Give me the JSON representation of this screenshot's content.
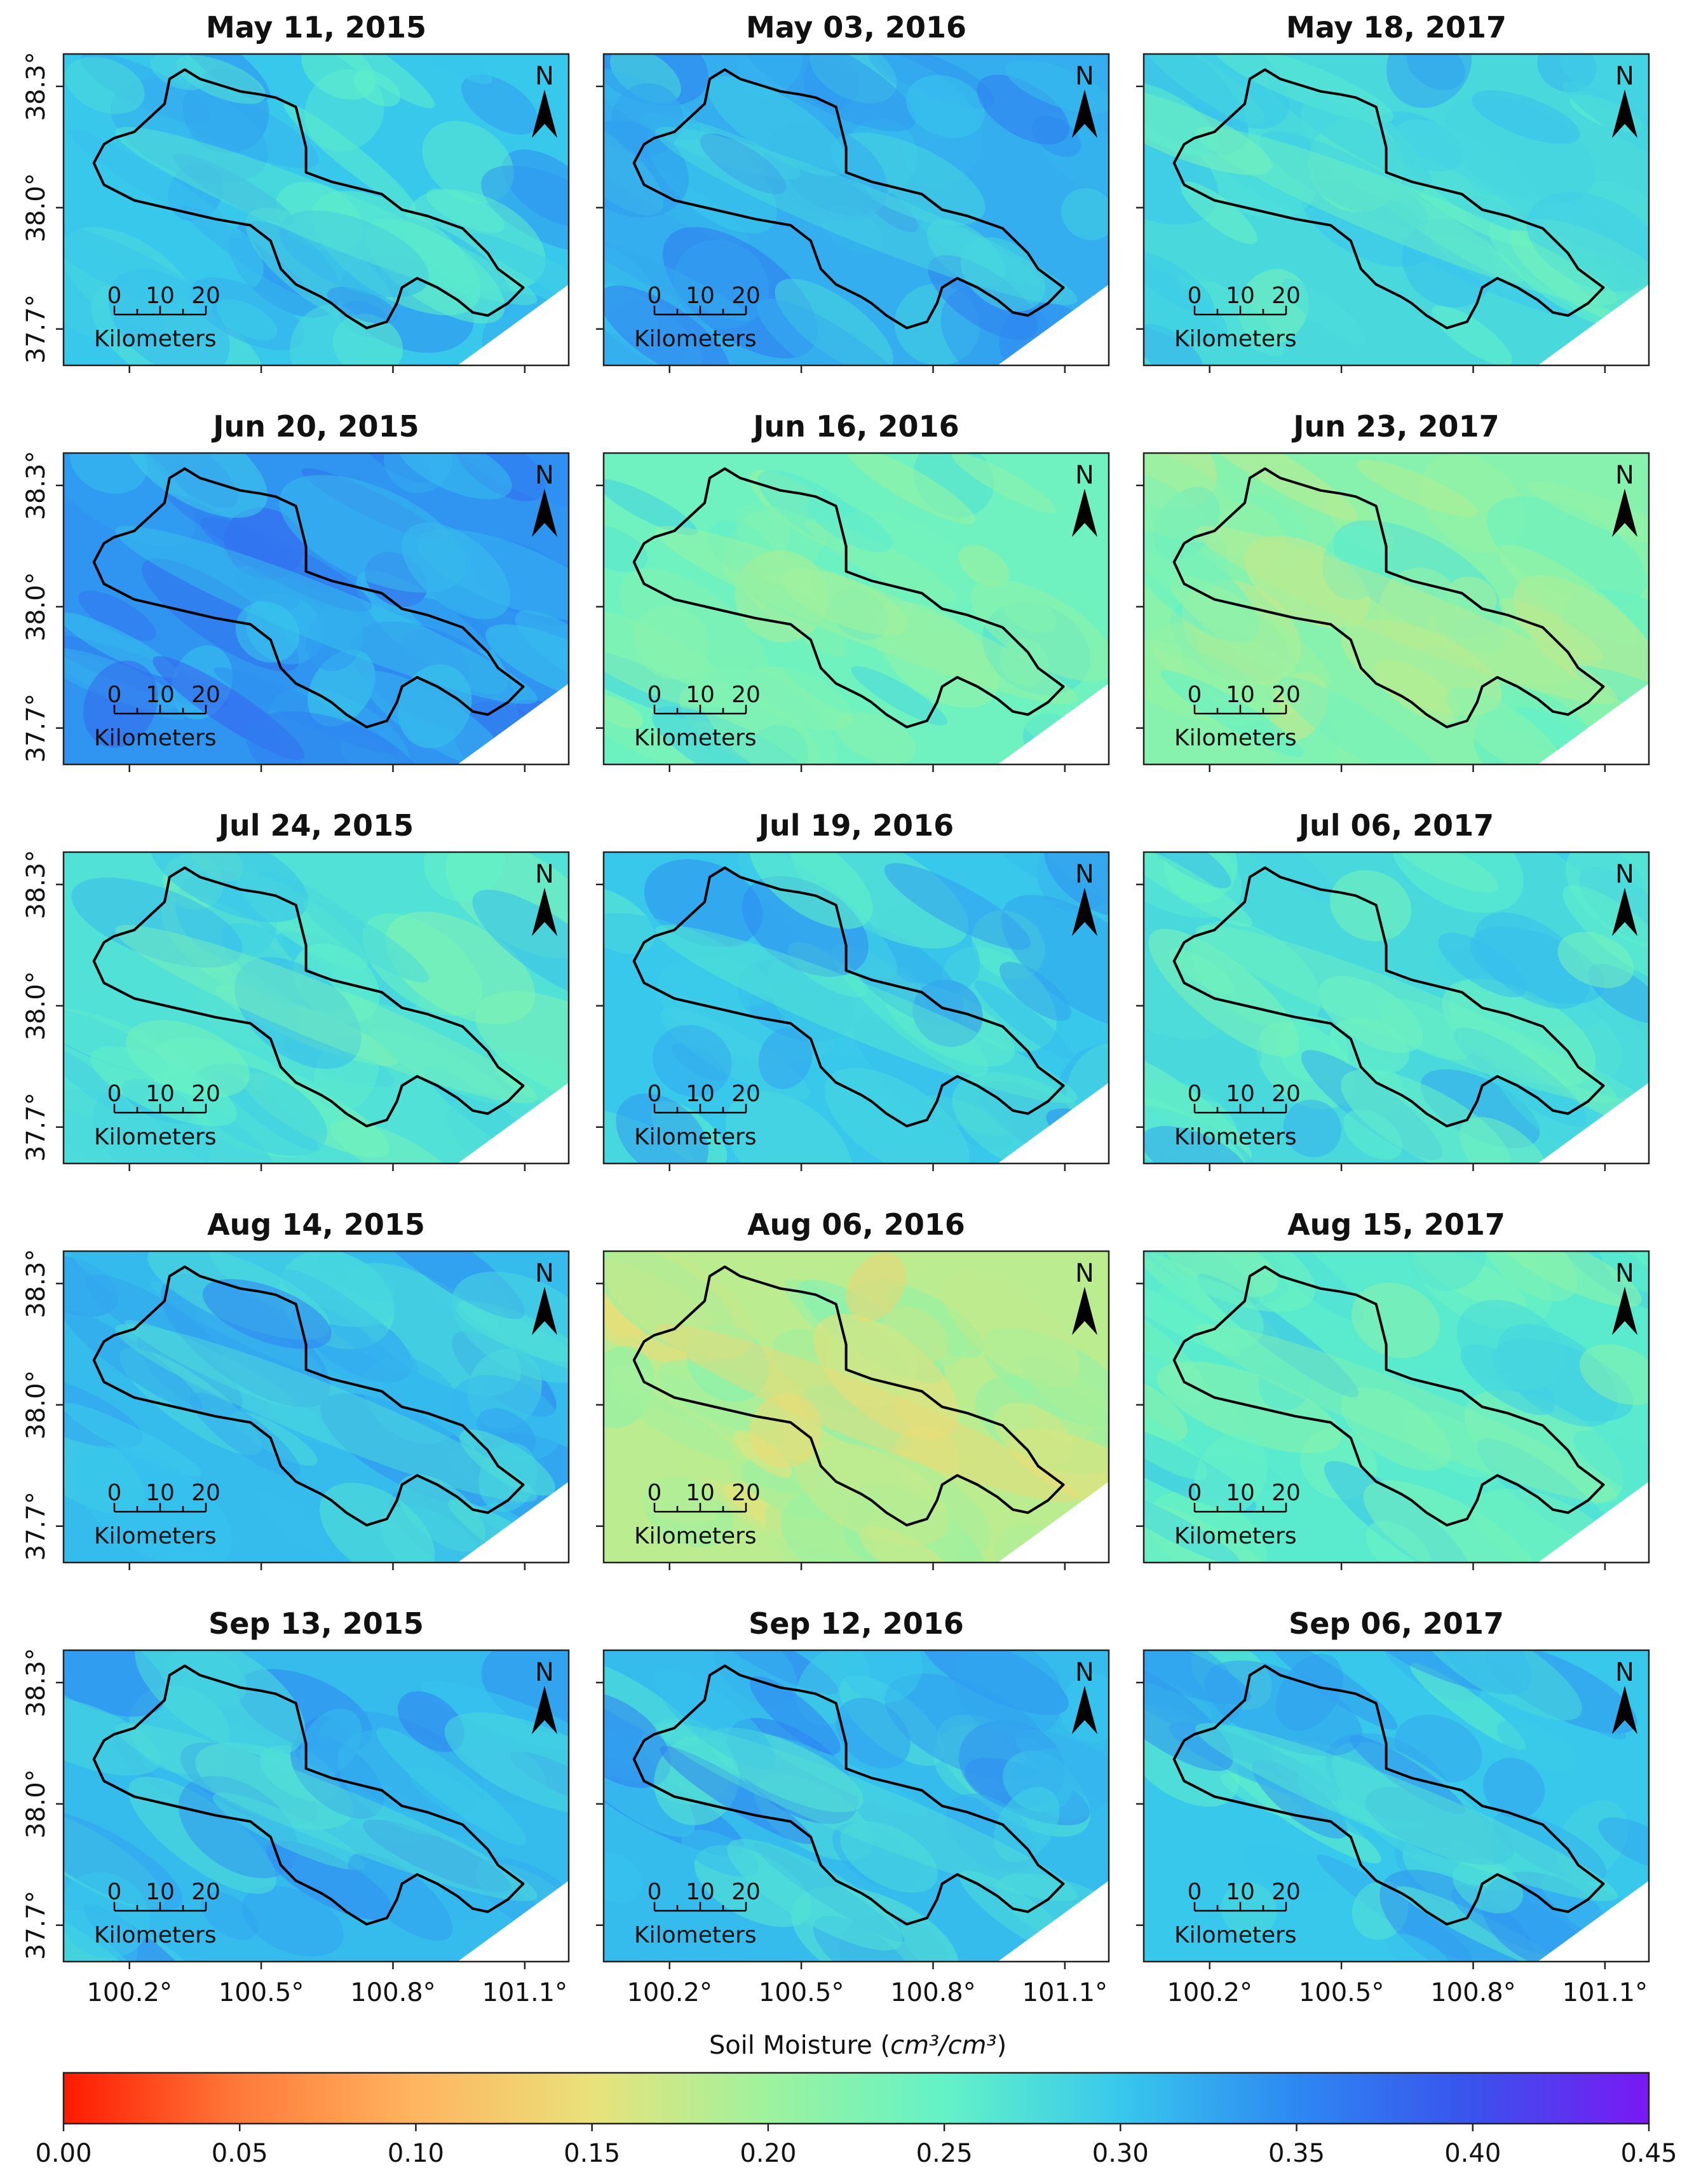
{
  "chart_data": {
    "type": "heatmap",
    "description_panels": "3 columns x 5 rows of soil moisture maps",
    "panels": [
      {
        "title": "May 11, 2015",
        "mean_value": 0.3
      },
      {
        "title": "May 03, 2016",
        "mean_value": 0.32
      },
      {
        "title": "May 18, 2017",
        "mean_value": 0.28
      },
      {
        "title": "Jun 20, 2015",
        "mean_value": 0.34
      },
      {
        "title": "Jun 16, 2016",
        "mean_value": 0.24
      },
      {
        "title": "Jun 23, 2017",
        "mean_value": 0.22
      },
      {
        "title": "Jul 24, 2015",
        "mean_value": 0.27
      },
      {
        "title": "Jul 19, 2016",
        "mean_value": 0.3
      },
      {
        "title": "Jul 06, 2017",
        "mean_value": 0.28
      },
      {
        "title": "Aug 14, 2015",
        "mean_value": 0.31
      },
      {
        "title": "Aug 06, 2016",
        "mean_value": 0.18
      },
      {
        "title": "Aug 15, 2017",
        "mean_value": 0.26
      },
      {
        "title": "Sep 13, 2015",
        "mean_value": 0.31
      },
      {
        "title": "Sep 12, 2016",
        "mean_value": 0.31
      },
      {
        "title": "Sep 06, 2017",
        "mean_value": 0.3
      }
    ],
    "x_ticks": [
      "100.2°",
      "100.5°",
      "100.8°",
      "101.1°"
    ],
    "x_tick_values": [
      100.2,
      100.5,
      100.8,
      101.1
    ],
    "x_range": [
      100.05,
      101.2
    ],
    "y_ticks": [
      "38.3°",
      "38.0°",
      "37.7°"
    ],
    "y_tick_values": [
      38.3,
      38.0,
      37.7
    ],
    "y_range": [
      37.61,
      38.38
    ],
    "scale_bar": {
      "labels": [
        "0",
        "10",
        "20"
      ],
      "unit": "Kilometers"
    },
    "north_label": "N",
    "colorbar": {
      "label_prefix": "Soil Moisture (",
      "label_math": "cm³/cm³",
      "label_suffix": ")",
      "ticks": [
        "0.00",
        "0.05",
        "0.10",
        "0.15",
        "0.20",
        "0.25",
        "0.30",
        "0.35",
        "0.40",
        "0.45"
      ],
      "tick_values": [
        0.0,
        0.05,
        0.1,
        0.15,
        0.2,
        0.25,
        0.3,
        0.35,
        0.4,
        0.45
      ],
      "range": [
        0.0,
        0.45
      ],
      "colors": [
        "#ff1a00",
        "#ff7a3a",
        "#ffb560",
        "#e9e27a",
        "#9ef29e",
        "#63f2c7",
        "#38c8ec",
        "#2d88f2",
        "#3a52ec",
        "#7a18f4"
      ]
    }
  }
}
